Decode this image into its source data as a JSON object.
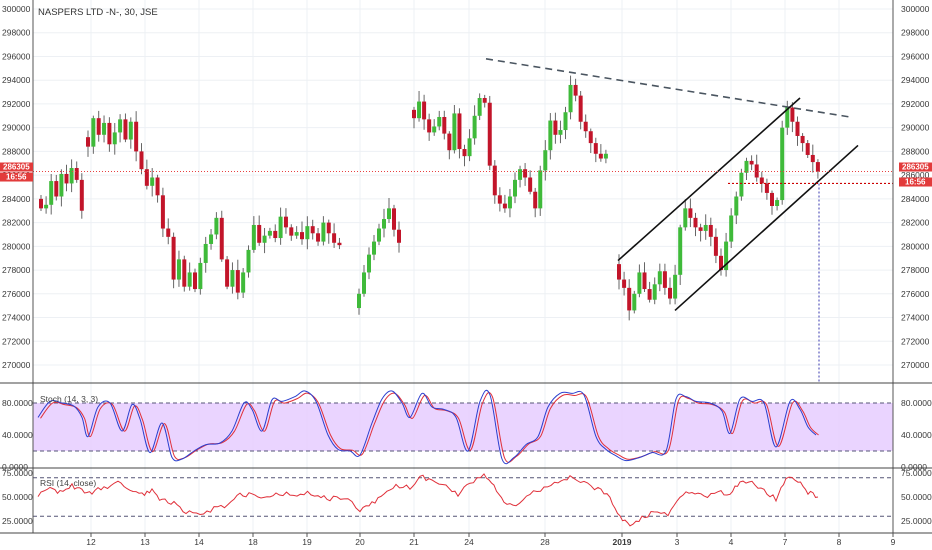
{
  "chart_data": {
    "type": "candlestick",
    "title": "NASPERS LTD -N-, 30, JSE",
    "price_axis": {
      "range": [
        268000,
        300500
      ],
      "ticks": [
        270000,
        272000,
        274000,
        276000,
        278000,
        280000,
        282000,
        284000,
        286000,
        288000,
        290000,
        292000,
        294000,
        296000,
        298000,
        300000
      ]
    },
    "x_axis": {
      "labels": [
        "12",
        "13",
        "14",
        "18",
        "19",
        "20",
        "21",
        "24",
        "28",
        "2019",
        "3",
        "4",
        "7",
        "8",
        "9"
      ]
    },
    "last_price": {
      "label": "286305",
      "time": "16:56",
      "value": 286305
    },
    "candles": {
      "colors": {
        "up": "#3fba3a",
        "down": "#c2152a"
      },
      "segments": [
        {
          "start": [
            284000,
            283200
          ],
          "points": [
            283500,
            285500,
            284200,
            286100,
            285300,
            286600,
            285600,
            283000
          ]
        },
        {
          "start": [
            289200,
            288400
          ],
          "points": [
            290800,
            289400,
            290400,
            288600,
            289600,
            290700,
            289000,
            290500,
            288000,
            286500,
            285100,
            285800,
            284300,
            281500,
            280800,
            277200,
            278900,
            276600,
            277800,
            276400,
            278600,
            280200,
            281000,
            282400,
            278900,
            276600,
            278000,
            276100,
            277800,
            279700,
            281800,
            280300,
            280900,
            281300,
            280700,
            282500,
            281600,
            280900,
            281200,
            280600,
            281700,
            281100,
            280400,
            282000,
            281100,
            280300,
            280100
          ]
        },
        {
          "start": [
            274800,
            276000
          ],
          "points": [
            277800,
            279300,
            280400,
            281500,
            282300,
            283200,
            281400,
            280300
          ]
        },
        {
          "start": [
            291500,
            290800
          ],
          "points": [
            292200,
            290700,
            289600,
            290100,
            290900,
            289500,
            288100,
            291200,
            288200,
            287600,
            289100,
            291000,
            292500,
            292100,
            286800,
            284300,
            283600,
            283200,
            284200,
            285600,
            286500,
            285800,
            284600,
            283200,
            286400,
            288100,
            290600,
            289400,
            289800,
            291300,
            293600,
            292700,
            290500,
            289700,
            288700,
            287800,
            287400,
            287800
          ]
        },
        {
          "start": [
            278500,
            277200
          ],
          "points": [
            276500,
            274600,
            276000,
            277800,
            276400,
            275500,
            276800,
            277900,
            276500,
            275600,
            277600,
            281600,
            283200,
            282400,
            281600,
            281300,
            281800,
            280800,
            279200,
            278000,
            280400,
            282600,
            284200,
            286200,
            287200,
            286900,
            285800,
            285300,
            284500,
            283400,
            283900,
            290000,
            291700,
            290500,
            289300,
            288700,
            287700,
            287100,
            286305
          ]
        }
      ]
    },
    "annotations": [
      {
        "type": "resistance-trendline",
        "style": "dashed",
        "color": "#4a5560",
        "from": [
          486,
          295800
        ],
        "to": [
          850,
          290900
        ]
      },
      {
        "type": "channel-upper",
        "color": "#111111",
        "from": [
          618,
          278800
        ],
        "to": [
          800,
          292500
        ]
      },
      {
        "type": "channel-lower",
        "color": "#111111",
        "from": [
          675,
          274600
        ],
        "to": [
          858,
          288500
        ]
      },
      {
        "type": "price-level",
        "style": "dotted",
        "color": "#cc0000",
        "value": 285300
      }
    ],
    "stochastic": {
      "label": "Stoch (14, 3, 3)",
      "ticks": [
        80,
        40,
        0
      ],
      "tick_labels": [
        "80.0000",
        "40.0000",
        "0.0000"
      ],
      "band": [
        20,
        80
      ],
      "k_color": "#2b3fcf",
      "d_color": "#e0303a",
      "anchors": [
        [
          38,
          62
        ],
        [
          50,
          82
        ],
        [
          62,
          80
        ],
        [
          74,
          76
        ],
        [
          82,
          62
        ],
        [
          88,
          38
        ],
        [
          98,
          75
        ],
        [
          110,
          80
        ],
        [
          122,
          45
        ],
        [
          132,
          78
        ],
        [
          140,
          60
        ],
        [
          150,
          18
        ],
        [
          162,
          55
        ],
        [
          172,
          12
        ],
        [
          182,
          10
        ],
        [
          194,
          20
        ],
        [
          206,
          28
        ],
        [
          220,
          30
        ],
        [
          232,
          45
        ],
        [
          244,
          80
        ],
        [
          252,
          72
        ],
        [
          262,
          45
        ],
        [
          272,
          84
        ],
        [
          282,
          82
        ],
        [
          295,
          88
        ],
        [
          305,
          95
        ],
        [
          316,
          82
        ],
        [
          328,
          40
        ],
        [
          338,
          22
        ],
        [
          350,
          20
        ],
        [
          360,
          15
        ],
        [
          372,
          55
        ],
        [
          382,
          85
        ],
        [
          392,
          95
        ],
        [
          402,
          80
        ],
        [
          410,
          62
        ],
        [
          422,
          92
        ],
        [
          432,
          75
        ],
        [
          444,
          72
        ],
        [
          456,
          62
        ],
        [
          468,
          20
        ],
        [
          480,
          82
        ],
        [
          490,
          90
        ],
        [
          502,
          10
        ],
        [
          514,
          12
        ],
        [
          526,
          28
        ],
        [
          538,
          38
        ],
        [
          548,
          75
        ],
        [
          560,
          92
        ],
        [
          572,
          92
        ],
        [
          584,
          90
        ],
        [
          596,
          38
        ],
        [
          606,
          22
        ],
        [
          616,
          14
        ],
        [
          626,
          8
        ],
        [
          640,
          12
        ],
        [
          652,
          18
        ],
        [
          666,
          20
        ],
        [
          676,
          85
        ],
        [
          686,
          88
        ],
        [
          696,
          82
        ],
        [
          710,
          80
        ],
        [
          722,
          70
        ],
        [
          730,
          42
        ],
        [
          740,
          85
        ],
        [
          752,
          82
        ],
        [
          764,
          80
        ],
        [
          776,
          25
        ],
        [
          790,
          82
        ],
        [
          800,
          72
        ],
        [
          808,
          50
        ],
        [
          816,
          40
        ]
      ]
    },
    "rsi": {
      "label": "RSI (14, close)",
      "ticks": [
        75,
        50,
        25
      ],
      "tick_labels": [
        "75.0000",
        "50.0000",
        "25.0000"
      ],
      "levels": [
        70,
        30
      ],
      "color": "#e0303a",
      "anchors": [
        [
          38,
          52
        ],
        [
          50,
          60
        ],
        [
          60,
          55
        ],
        [
          72,
          62
        ],
        [
          82,
          56
        ],
        [
          92,
          55
        ],
        [
          104,
          60
        ],
        [
          118,
          64
        ],
        [
          130,
          58
        ],
        [
          142,
          52
        ],
        [
          152,
          58
        ],
        [
          162,
          46
        ],
        [
          174,
          44
        ],
        [
          186,
          34
        ],
        [
          200,
          32
        ],
        [
          214,
          38
        ],
        [
          228,
          42
        ],
        [
          240,
          52
        ],
        [
          252,
          52
        ],
        [
          264,
          50
        ],
        [
          276,
          55
        ],
        [
          290,
          52
        ],
        [
          304,
          54
        ],
        [
          318,
          52
        ],
        [
          330,
          48
        ],
        [
          344,
          50
        ],
        [
          360,
          36
        ],
        [
          372,
          44
        ],
        [
          384,
          52
        ],
        [
          396,
          62
        ],
        [
          410,
          60
        ],
        [
          420,
          72
        ],
        [
          432,
          66
        ],
        [
          446,
          62
        ],
        [
          458,
          52
        ],
        [
          470,
          64
        ],
        [
          484,
          74
        ],
        [
          494,
          62
        ],
        [
          504,
          44
        ],
        [
          516,
          42
        ],
        [
          530,
          52
        ],
        [
          544,
          60
        ],
        [
          558,
          66
        ],
        [
          570,
          70
        ],
        [
          584,
          64
        ],
        [
          598,
          58
        ],
        [
          610,
          50
        ],
        [
          620,
          28
        ],
        [
          630,
          22
        ],
        [
          642,
          28
        ],
        [
          654,
          34
        ],
        [
          668,
          32
        ],
        [
          680,
          52
        ],
        [
          692,
          54
        ],
        [
          704,
          50
        ],
        [
          718,
          56
        ],
        [
          730,
          52
        ],
        [
          740,
          66
        ],
        [
          752,
          64
        ],
        [
          764,
          56
        ],
        [
          776,
          48
        ],
        [
          786,
          70
        ],
        [
          798,
          66
        ],
        [
          808,
          55
        ],
        [
          818,
          50
        ]
      ]
    }
  }
}
